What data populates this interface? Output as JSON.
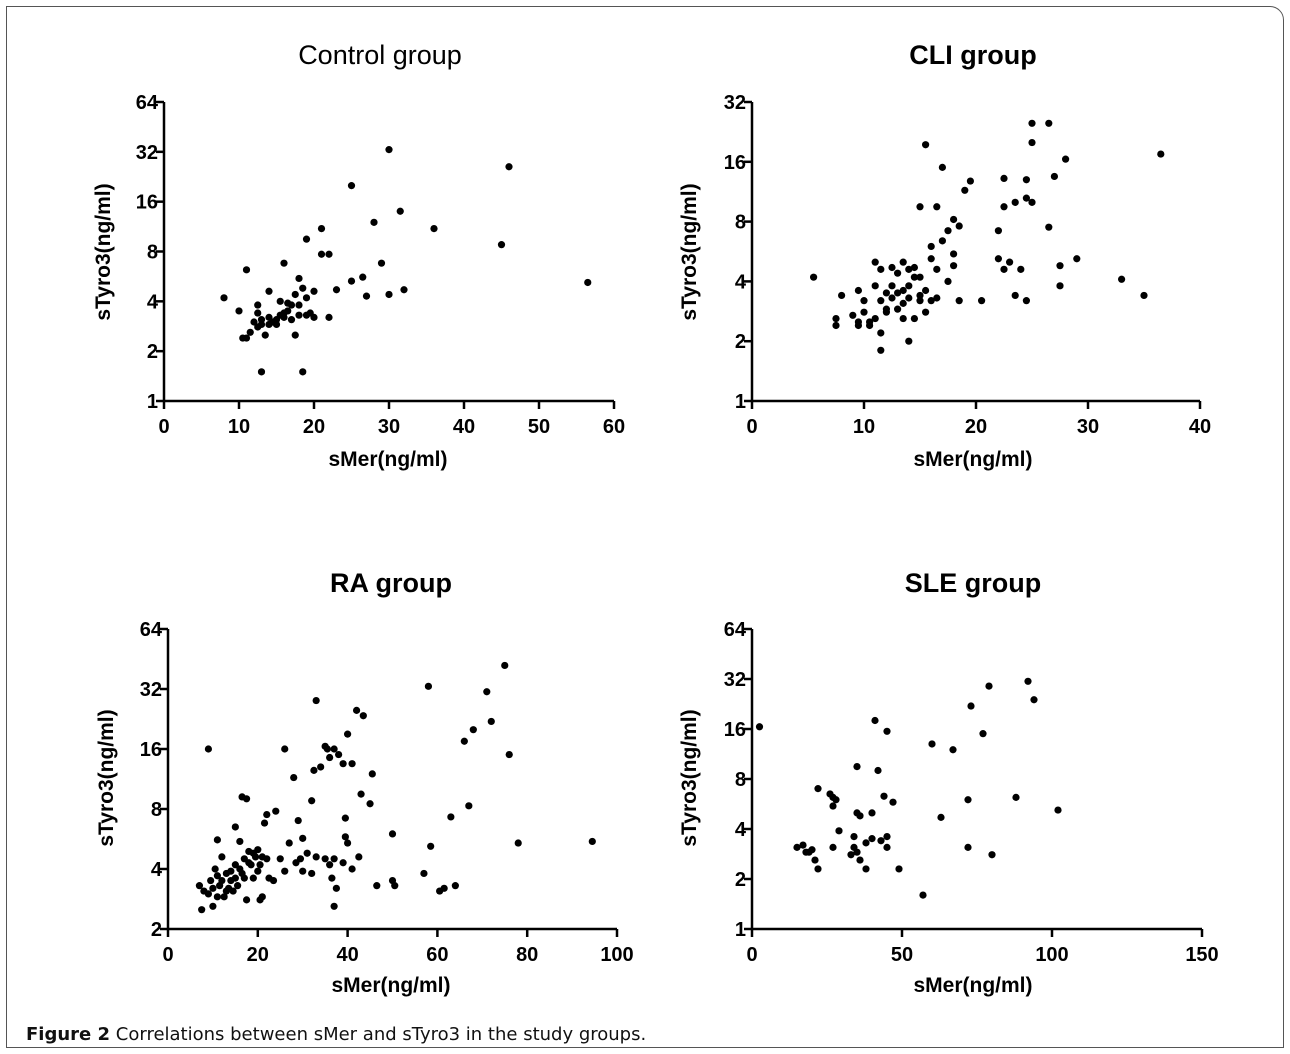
{
  "caption": {
    "label": "Figure 2",
    "text": "Correlations between sMer and sTyro3 in the study groups."
  },
  "chart_data": [
    {
      "type": "scatter",
      "title": "Control group",
      "xlabel": "sMer(ng/ml)",
      "ylabel": "sTyro3(ng/ml)",
      "xlim": [
        0,
        60
      ],
      "ylim": [
        1,
        64
      ],
      "yscale": "log2",
      "xticks": [
        "0",
        "10",
        "20",
        "30",
        "40",
        "50",
        "60"
      ],
      "yticks": [
        "1",
        "2",
        "4",
        "8",
        "16",
        "32",
        "64"
      ],
      "points": [
        [
          8,
          4.2
        ],
        [
          10,
          3.5
        ],
        [
          10.5,
          2.4
        ],
        [
          11,
          6.2
        ],
        [
          11,
          2.4
        ],
        [
          11.5,
          2.6
        ],
        [
          12,
          3
        ],
        [
          12.5,
          3.4
        ],
        [
          12.5,
          2.8
        ],
        [
          12.5,
          3.8
        ],
        [
          13,
          3.1
        ],
        [
          13,
          2.9
        ],
        [
          13,
          1.5
        ],
        [
          13.5,
          2.5
        ],
        [
          14,
          3.2
        ],
        [
          14,
          2.9
        ],
        [
          14,
          4.6
        ],
        [
          14.5,
          3
        ],
        [
          15,
          3.1
        ],
        [
          15,
          2.9
        ],
        [
          15.5,
          3.3
        ],
        [
          15.5,
          4
        ],
        [
          16,
          3.2
        ],
        [
          16,
          3.4
        ],
        [
          16,
          6.8
        ],
        [
          16.5,
          3.5
        ],
        [
          16.5,
          3.9
        ],
        [
          17,
          3.8
        ],
        [
          17,
          3.1
        ],
        [
          17.5,
          2.5
        ],
        [
          17.5,
          4.4
        ],
        [
          18,
          5.5
        ],
        [
          18,
          3.3
        ],
        [
          18,
          3.8
        ],
        [
          18.5,
          4.8
        ],
        [
          18.5,
          1.5
        ],
        [
          19,
          3.3
        ],
        [
          19,
          4.2
        ],
        [
          19,
          9.5
        ],
        [
          19.5,
          3.4
        ],
        [
          20,
          3.2
        ],
        [
          20,
          4.6
        ],
        [
          21,
          11
        ],
        [
          21,
          7.7
        ],
        [
          22,
          7.7
        ],
        [
          22,
          3.2
        ],
        [
          23,
          4.7
        ],
        [
          25,
          5.3
        ],
        [
          25,
          20
        ],
        [
          26.5,
          5.6
        ],
        [
          27,
          4.3
        ],
        [
          28,
          12
        ],
        [
          29,
          6.8
        ],
        [
          30,
          33
        ],
        [
          30,
          4.4
        ],
        [
          31.5,
          14
        ],
        [
          32,
          4.7
        ],
        [
          36,
          11
        ],
        [
          45,
          8.8
        ],
        [
          46,
          26
        ],
        [
          56.5,
          5.2
        ]
      ]
    },
    {
      "type": "scatter",
      "title": "CLI group",
      "xlabel": "sMer(ng/ml)",
      "ylabel": "sTyro3(ng/ml)",
      "xlim": [
        0,
        40
      ],
      "ylim": [
        1,
        32
      ],
      "yscale": "log2",
      "xticks": [
        "0",
        "10",
        "20",
        "30",
        "40"
      ],
      "yticks": [
        "1",
        "2",
        "4",
        "8",
        "16",
        "32"
      ],
      "points": [
        [
          5.5,
          4.2
        ],
        [
          7.5,
          2.4
        ],
        [
          7.5,
          2.6
        ],
        [
          8,
          3.4
        ],
        [
          9,
          2.7
        ],
        [
          9.5,
          2.4
        ],
        [
          9.5,
          3.6
        ],
        [
          9.5,
          2.5
        ],
        [
          10,
          3.2
        ],
        [
          10,
          2.8
        ],
        [
          10.5,
          2.5
        ],
        [
          10.5,
          2.4
        ],
        [
          11,
          3.8
        ],
        [
          11,
          2.6
        ],
        [
          11,
          5
        ],
        [
          11.5,
          3.2
        ],
        [
          11.5,
          4.6
        ],
        [
          11.5,
          2.2
        ],
        [
          11.5,
          1.8
        ],
        [
          12,
          2.9
        ],
        [
          12,
          3.5
        ],
        [
          12,
          2.8
        ],
        [
          12.5,
          3.3
        ],
        [
          12.5,
          3.8
        ],
        [
          12.5,
          4.7
        ],
        [
          13,
          2.9
        ],
        [
          13,
          3.5
        ],
        [
          13,
          4.4
        ],
        [
          13.5,
          2.6
        ],
        [
          13.5,
          3.6
        ],
        [
          13.5,
          5
        ],
        [
          13.5,
          3.1
        ],
        [
          14,
          3.8
        ],
        [
          14,
          4.6
        ],
        [
          14,
          3.3
        ],
        [
          14,
          2
        ],
        [
          14.5,
          2.6
        ],
        [
          14.5,
          4.2
        ],
        [
          14.5,
          4.7
        ],
        [
          15,
          3.4
        ],
        [
          15,
          4.2
        ],
        [
          15,
          3.2
        ],
        [
          15,
          9.5
        ],
        [
          15.5,
          2.8
        ],
        [
          15.5,
          3.6
        ],
        [
          15.5,
          19.5
        ],
        [
          16,
          3.2
        ],
        [
          16,
          5.2
        ],
        [
          16,
          6
        ],
        [
          16.5,
          9.5
        ],
        [
          16.5,
          4.6
        ],
        [
          16.5,
          3.3
        ],
        [
          17,
          6.4
        ],
        [
          17,
          15
        ],
        [
          17.5,
          7.2
        ],
        [
          17.5,
          4
        ],
        [
          18,
          4.8
        ],
        [
          18,
          5.5
        ],
        [
          18,
          8.2
        ],
        [
          18.5,
          3.2
        ],
        [
          18.5,
          7.6
        ],
        [
          19,
          11.5
        ],
        [
          19.5,
          12.8
        ],
        [
          20.5,
          3.2
        ],
        [
          22,
          7.2
        ],
        [
          22,
          5.2
        ],
        [
          22.5,
          9.5
        ],
        [
          22.5,
          4.6
        ],
        [
          22.5,
          13.2
        ],
        [
          23,
          5
        ],
        [
          23.5,
          3.4
        ],
        [
          23.5,
          10
        ],
        [
          24,
          4.6
        ],
        [
          24.5,
          3.2
        ],
        [
          24.5,
          10.5
        ],
        [
          24.5,
          13
        ],
        [
          25,
          10
        ],
        [
          25,
          20
        ],
        [
          25,
          25
        ],
        [
          26.5,
          7.5
        ],
        [
          26.5,
          25
        ],
        [
          27,
          13.5
        ],
        [
          27.5,
          4.8
        ],
        [
          27.5,
          3.8
        ],
        [
          28,
          16.5
        ],
        [
          29,
          5.2
        ],
        [
          33,
          4.1
        ],
        [
          35,
          3.4
        ],
        [
          36.5,
          17.5
        ]
      ]
    },
    {
      "type": "scatter",
      "title": "RA group",
      "xlabel": "sMer(ng/ml)",
      "ylabel": "sTyro3(ng/ml)",
      "xlim": [
        0,
        100
      ],
      "ylim": [
        2,
        64
      ],
      "yscale": "log2",
      "xticks": [
        "0",
        "20",
        "40",
        "60",
        "80",
        "100"
      ],
      "yticks": [
        "2",
        "4",
        "8",
        "16",
        "32",
        "64"
      ],
      "points": [
        [
          7,
          3.3
        ],
        [
          7.5,
          2.5
        ],
        [
          8,
          3.1
        ],
        [
          9,
          3
        ],
        [
          9,
          16
        ],
        [
          9.5,
          3.5
        ],
        [
          10,
          3.2
        ],
        [
          10,
          2.6
        ],
        [
          10.5,
          4
        ],
        [
          11,
          5.6
        ],
        [
          11,
          2.9
        ],
        [
          11,
          3.7
        ],
        [
          11.5,
          3.3
        ],
        [
          12,
          3.5
        ],
        [
          12,
          4.6
        ],
        [
          12.5,
          2.9
        ],
        [
          13,
          3.1
        ],
        [
          13,
          3.8
        ],
        [
          13.5,
          3.2
        ],
        [
          14,
          3.5
        ],
        [
          14,
          3.9
        ],
        [
          14.5,
          3.1
        ],
        [
          15,
          4.2
        ],
        [
          15,
          3.6
        ],
        [
          15,
          6.5
        ],
        [
          15.5,
          3.3
        ],
        [
          16,
          4
        ],
        [
          16,
          5.5
        ],
        [
          16.5,
          3.8
        ],
        [
          16.5,
          9.2
        ],
        [
          17,
          4.5
        ],
        [
          17,
          3.6
        ],
        [
          17.5,
          2.8
        ],
        [
          17.5,
          9
        ],
        [
          18,
          4.3
        ],
        [
          18,
          4.9
        ],
        [
          18.5,
          4.2
        ],
        [
          19,
          4.8
        ],
        [
          19,
          3.6
        ],
        [
          19.5,
          4.6
        ],
        [
          20,
          3.9
        ],
        [
          20,
          5
        ],
        [
          20.5,
          2.8
        ],
        [
          20.5,
          4.2
        ],
        [
          21,
          4.6
        ],
        [
          21,
          2.9
        ],
        [
          21.5,
          6.8
        ],
        [
          22,
          4.5
        ],
        [
          22,
          7.5
        ],
        [
          22.5,
          3.6
        ],
        [
          23.5,
          3.5
        ],
        [
          24,
          7.8
        ],
        [
          25,
          4.5
        ],
        [
          26,
          3.9
        ],
        [
          26,
          16
        ],
        [
          27,
          5.4
        ],
        [
          28,
          11.5
        ],
        [
          28.5,
          4.3
        ],
        [
          29,
          7
        ],
        [
          29.5,
          4.5
        ],
        [
          30,
          5.7
        ],
        [
          30,
          3.9
        ],
        [
          31,
          4.8
        ],
        [
          32,
          3.8
        ],
        [
          32,
          8.8
        ],
        [
          32.5,
          12.5
        ],
        [
          33,
          4.6
        ],
        [
          33,
          28
        ],
        [
          34,
          13
        ],
        [
          35,
          16.5
        ],
        [
          35,
          4.5
        ],
        [
          35.5,
          16
        ],
        [
          36,
          4.2
        ],
        [
          36,
          14.5
        ],
        [
          36.5,
          3.6
        ],
        [
          37,
          4.5
        ],
        [
          37,
          16
        ],
        [
          37,
          2.6
        ],
        [
          37.5,
          3.2
        ],
        [
          38,
          15
        ],
        [
          39,
          13.5
        ],
        [
          39,
          4.3
        ],
        [
          39.5,
          5.8
        ],
        [
          39.5,
          7.2
        ],
        [
          40,
          19
        ],
        [
          40,
          5.4
        ],
        [
          41,
          4
        ],
        [
          41,
          13.5
        ],
        [
          42,
          25
        ],
        [
          42.5,
          4.6
        ],
        [
          43,
          9.5
        ],
        [
          43.5,
          23.5
        ],
        [
          45,
          8.5
        ],
        [
          45.5,
          12
        ],
        [
          46.5,
          3.3
        ],
        [
          50,
          3.5
        ],
        [
          50,
          6
        ],
        [
          50.5,
          3.3
        ],
        [
          57,
          3.8
        ],
        [
          58,
          33
        ],
        [
          58.5,
          5.2
        ],
        [
          60.5,
          3.1
        ],
        [
          61.5,
          3.2
        ],
        [
          63,
          7.3
        ],
        [
          64,
          3.3
        ],
        [
          66,
          17.5
        ],
        [
          67,
          8.3
        ],
        [
          68,
          20
        ],
        [
          71,
          31
        ],
        [
          72,
          22
        ],
        [
          75,
          42
        ],
        [
          76,
          15
        ],
        [
          78,
          5.4
        ],
        [
          94.5,
          5.5
        ]
      ]
    },
    {
      "type": "scatter",
      "title": "SLE group",
      "xlabel": "sMer(ng/ml)",
      "ylabel": "sTyro3(ng/ml)",
      "xlim": [
        0,
        150
      ],
      "ylim": [
        1,
        64
      ],
      "yscale": "log2",
      "xticks": [
        "0",
        "50",
        "100",
        "150"
      ],
      "yticks": [
        "1",
        "2",
        "4",
        "8",
        "16",
        "32",
        "64"
      ],
      "points": [
        [
          2.5,
          16.5
        ],
        [
          15,
          3.1
        ],
        [
          17,
          3.2
        ],
        [
          18,
          2.9
        ],
        [
          19,
          2.9
        ],
        [
          20,
          3
        ],
        [
          21,
          2.6
        ],
        [
          22,
          2.3
        ],
        [
          22,
          7
        ],
        [
          26,
          6.5
        ],
        [
          27,
          6.2
        ],
        [
          27,
          5.5
        ],
        [
          27,
          3.1
        ],
        [
          28,
          6
        ],
        [
          29,
          3.9
        ],
        [
          33,
          2.8
        ],
        [
          34,
          3.6
        ],
        [
          34,
          3.1
        ],
        [
          35,
          9.5
        ],
        [
          35,
          2.9
        ],
        [
          35,
          5
        ],
        [
          36,
          2.6
        ],
        [
          36,
          4.8
        ],
        [
          38,
          3.3
        ],
        [
          38,
          2.3
        ],
        [
          40,
          5
        ],
        [
          40,
          3.5
        ],
        [
          41,
          18
        ],
        [
          42,
          9
        ],
        [
          43,
          3.4
        ],
        [
          44,
          6.3
        ],
        [
          45,
          15.5
        ],
        [
          45,
          3.6
        ],
        [
          45,
          3.1
        ],
        [
          47,
          5.8
        ],
        [
          49,
          2.3
        ],
        [
          57,
          1.6
        ],
        [
          60,
          13
        ],
        [
          63,
          4.7
        ],
        [
          67,
          12
        ],
        [
          72,
          6
        ],
        [
          72,
          3.1
        ],
        [
          73,
          22
        ],
        [
          77,
          15
        ],
        [
          79,
          29
        ],
        [
          80,
          2.8
        ],
        [
          88,
          6.2
        ],
        [
          92,
          31
        ],
        [
          94,
          24
        ],
        [
          102,
          5.2
        ]
      ]
    }
  ]
}
